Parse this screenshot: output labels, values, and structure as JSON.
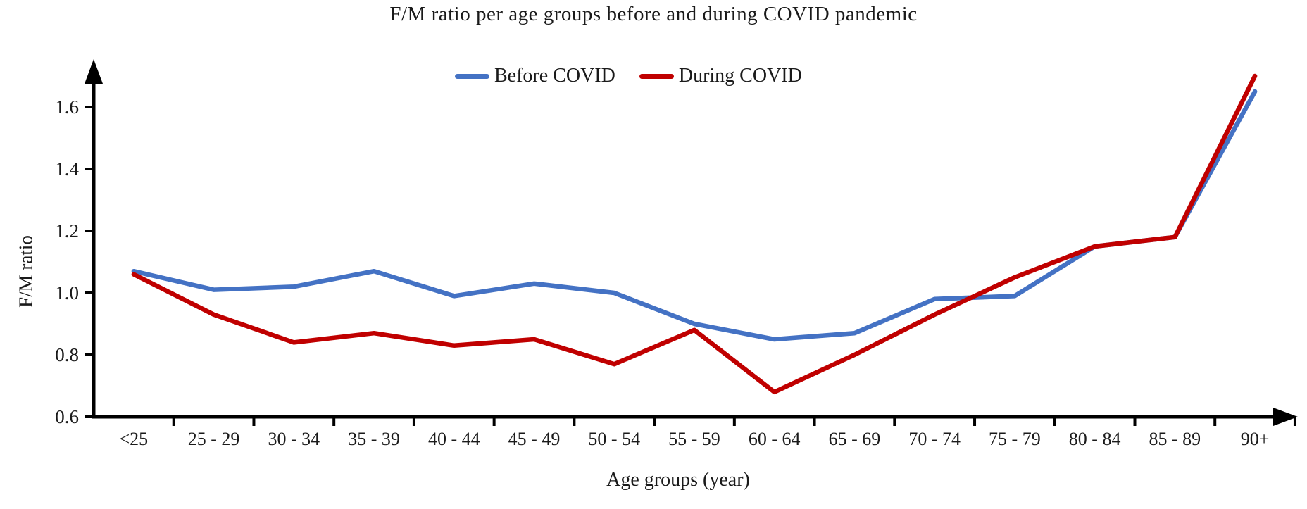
{
  "chart_data": {
    "type": "line",
    "title": "F/M ratio per age groups before and during COVID pandemic",
    "xlabel": "Age groups (year)",
    "ylabel": "F/M ratio",
    "ylim": [
      0.6,
      1.7
    ],
    "yticks": [
      0.6,
      0.8,
      1.0,
      1.2,
      1.4,
      1.6
    ],
    "grid": false,
    "legend_position": "top-center",
    "axis_color": "#000000",
    "categories": [
      "<25",
      "25 - 29",
      "30 - 34",
      "35 - 39",
      "40 - 44",
      "45 - 49",
      "50 - 54",
      "55 - 59",
      "60 - 64",
      "65 - 69",
      "70 - 74",
      "75 - 79",
      "80 - 84",
      "85 - 89",
      "90+"
    ],
    "series": [
      {
        "name": "Before COVID",
        "color": "#4472C4",
        "values": [
          1.07,
          1.01,
          1.02,
          1.07,
          0.99,
          1.03,
          1.0,
          0.9,
          0.85,
          0.87,
          0.98,
          0.99,
          1.15,
          1.18,
          1.65
        ]
      },
      {
        "name": "During COVID",
        "color": "#C00000",
        "values": [
          1.06,
          0.93,
          0.84,
          0.87,
          0.83,
          0.85,
          0.77,
          0.88,
          0.68,
          0.8,
          0.93,
          1.05,
          1.15,
          1.18,
          1.7
        ]
      }
    ]
  }
}
